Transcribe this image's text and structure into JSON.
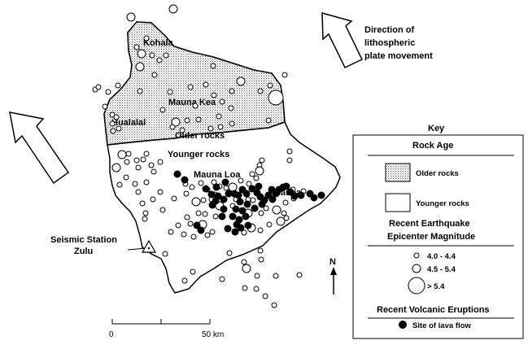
{
  "map": {
    "labels": {
      "kohala": "Kohala",
      "mauna_kea": "Mauna Kea",
      "hualalai": "Hualalai",
      "older_rocks": "Older rocks",
      "younger_rocks": "Younger rocks",
      "mauna_loa": "Mauna Loa",
      "kilauea": "Kilauea",
      "seismic_station_line1": "Seismic Station",
      "seismic_station_line2": "Zulu"
    },
    "direction": {
      "line1": "Direction  of",
      "line2": "lithospheric",
      "line3": "plate movement"
    },
    "north_label": "N",
    "scale": {
      "start": "0",
      "end": "50 km"
    }
  },
  "key": {
    "title": "Key",
    "rock_age_title": "Rock Age",
    "older_rocks": "Older rocks",
    "younger_rocks": "Younger rocks",
    "eq_title_line1": "Recent Earthquake",
    "eq_title_line2": "Epicenter Magnitude",
    "mag_small": "4.0 - 4.4",
    "mag_medium": "4.5 - 5.4",
    "mag_large": "> 5.4",
    "volcanic_title": "Recent Volcanic Eruptions",
    "lava_flow": "Site of lava flow"
  },
  "colors": {
    "older_rock_fill": "#cfcfcf",
    "lava_flow": "#000000",
    "outline": "#000000"
  }
}
